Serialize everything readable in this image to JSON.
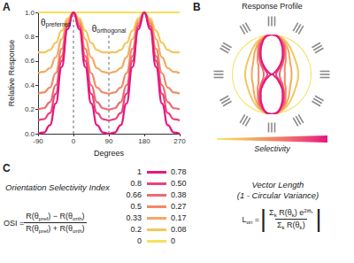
{
  "chart_data": {
    "type": "line",
    "x_label": "Degrees",
    "y_label": "Relative Response",
    "x": [
      -90,
      -75,
      -60,
      -45,
      -30,
      -15,
      0,
      15,
      30,
      45,
      60,
      75,
      90,
      105,
      120,
      135,
      150,
      165,
      180,
      195,
      210,
      225,
      240,
      255,
      270
    ],
    "xlim": [
      -90,
      270
    ],
    "xticks": [
      -90,
      0,
      90,
      180,
      270
    ],
    "ylim": [
      0,
      1
    ],
    "yticks": [
      {
        "value": 0,
        "label": "0.0"
      },
      0.2,
      0.4,
      0.6,
      0.8,
      {
        "value": 1,
        "label": "1.0"
      }
    ],
    "grid": false,
    "annotations": [
      {
        "x": 0,
        "text": "θ",
        "subscript": "preferred"
      },
      {
        "x": 90,
        "text": "θ",
        "subscript": "orthogonal"
      }
    ],
    "series": [
      {
        "name": "1",
        "vector_length": "0.78",
        "color": "#e5177f",
        "values": [
          0,
          0.01,
          0.07,
          0.25,
          0.55,
          0.86,
          1,
          0.86,
          0.55,
          0.25,
          0.07,
          0.01,
          0,
          0.01,
          0.07,
          0.25,
          0.55,
          0.86,
          1,
          0.86,
          0.55,
          0.25,
          0.07,
          0.01,
          0
        ]
      },
      {
        "name": "0.8",
        "vector_length": "0.50",
        "color": "#ec4279",
        "values": [
          0.11,
          0.12,
          0.17,
          0.33,
          0.6,
          0.88,
          1,
          0.88,
          0.6,
          0.33,
          0.17,
          0.12,
          0.11,
          0.12,
          0.17,
          0.33,
          0.6,
          0.88,
          1,
          0.88,
          0.6,
          0.33,
          0.17,
          0.12,
          0.11
        ]
      },
      {
        "name": "0.66",
        "vector_length": "0.38",
        "color": "#ef6a70",
        "values": [
          0.2,
          0.21,
          0.26,
          0.4,
          0.64,
          0.89,
          1,
          0.89,
          0.64,
          0.4,
          0.26,
          0.21,
          0.2,
          0.21,
          0.26,
          0.4,
          0.64,
          0.89,
          1,
          0.89,
          0.64,
          0.4,
          0.26,
          0.21,
          0.2
        ]
      },
      {
        "name": "0.5",
        "vector_length": "0.27",
        "color": "#f18a66",
        "values": [
          0.33,
          0.34,
          0.38,
          0.5,
          0.7,
          0.91,
          1,
          0.91,
          0.7,
          0.5,
          0.38,
          0.34,
          0.33,
          0.34,
          0.38,
          0.5,
          0.7,
          0.91,
          1,
          0.91,
          0.7,
          0.5,
          0.38,
          0.34,
          0.33
        ]
      },
      {
        "name": "0.33",
        "vector_length": "0.17",
        "color": "#f3a95f",
        "values": [
          0.5,
          0.51,
          0.54,
          0.63,
          0.78,
          0.93,
          1,
          0.93,
          0.78,
          0.63,
          0.54,
          0.51,
          0.5,
          0.51,
          0.54,
          0.63,
          0.78,
          0.93,
          1,
          0.93,
          0.78,
          0.63,
          0.54,
          0.51,
          0.5
        ]
      },
      {
        "name": "0.2",
        "vector_length": "0.08",
        "color": "#f4c65c",
        "values": [
          0.67,
          0.67,
          0.69,
          0.75,
          0.85,
          0.95,
          1,
          0.95,
          0.85,
          0.75,
          0.69,
          0.67,
          0.67,
          0.67,
          0.69,
          0.75,
          0.85,
          0.95,
          1,
          0.95,
          0.85,
          0.75,
          0.69,
          0.67,
          0.67
        ]
      },
      {
        "name": "0",
        "vector_length": "0",
        "color": "#f6e05a",
        "values": [
          1,
          1,
          1,
          1,
          1,
          1,
          1,
          1,
          1,
          1,
          1,
          1,
          1,
          1,
          1,
          1,
          1,
          1,
          1,
          1,
          1,
          1,
          1,
          1,
          1
        ]
      }
    ]
  },
  "panels": {
    "A": {
      "label": "A"
    },
    "B": {
      "label": "B",
      "title": "Response Profile",
      "colorbar_label": "Selectivity"
    },
    "C": {
      "label": "C",
      "osi_title": "Orientation Selectivity Index",
      "vl_title": "Vector Length",
      "vl_subtitle": "(1 - Circular Variance)",
      "osi_formula": {
        "lhs": [
          {
            "t": "OSI = "
          }
        ],
        "numerator": [
          {
            "t": "R(θ"
          },
          {
            "sub": "pref"
          },
          {
            "t": ") − R(θ"
          },
          {
            "sub": "orth"
          },
          {
            "t": ")"
          }
        ],
        "denominator": [
          {
            "t": "R(θ"
          },
          {
            "sub": "pref"
          },
          {
            "t": ") + R(θ"
          },
          {
            "sub": "orth"
          },
          {
            "t": ")"
          }
        ]
      },
      "vl_formula": {
        "lhs": [
          {
            "t": "L"
          },
          {
            "sub": "ori"
          },
          {
            "t": " = "
          }
        ],
        "delimiter": "|",
        "numerator": [
          {
            "t": "Σ"
          },
          {
            "sub": "k"
          },
          {
            "t": " R(θ"
          },
          {
            "sub": "k"
          },
          {
            "t": ") e"
          },
          {
            "sup": [
              {
                "t": "2iθ"
              },
              {
                "sub": "k"
              }
            ]
          }
        ],
        "denominator": [
          {
            "t": "Σ"
          },
          {
            "sub": "k"
          },
          {
            "t": " R(θ"
          },
          {
            "sub": "k"
          },
          {
            "t": ")"
          }
        ]
      }
    }
  }
}
